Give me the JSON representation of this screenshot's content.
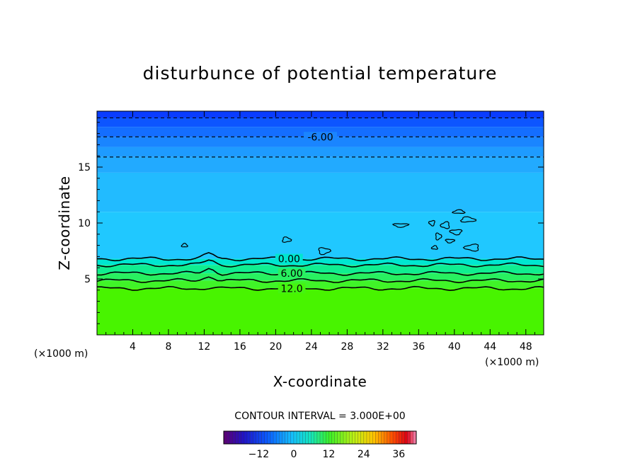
{
  "chart_data": {
    "type": "contour",
    "title": "disturbunce of potential temperature",
    "xlabel": "X-coordinate",
    "ylabel": "Z-coordinate",
    "x_unit_left": "(×1000 m)",
    "x_unit_right": "(×1000 m)",
    "xlim": [
      0,
      50
    ],
    "ylim": [
      0,
      20
    ],
    "x_ticks": [
      4,
      8,
      12,
      16,
      20,
      24,
      28,
      32,
      36,
      40,
      44,
      48
    ],
    "y_ticks": [
      5,
      10,
      15
    ],
    "x_tick_labels": [
      "4",
      "8",
      "12",
      "16",
      "20",
      "24",
      "28",
      "32",
      "36",
      "40",
      "44",
      "48"
    ],
    "y_tick_labels": [
      "5",
      "10",
      "15"
    ],
    "contour_interval_text": "CONTOUR INTERVAL = 3.000E+00",
    "contour_levels": [
      {
        "level": -9,
        "z": 19.4,
        "style": "dashed",
        "label": ""
      },
      {
        "level": -6,
        "z": 17.7,
        "style": "dashed",
        "label": "-6.00"
      },
      {
        "level": -3,
        "z": 15.9,
        "style": "dashed",
        "label": ""
      },
      {
        "level": 0,
        "z": 6.8,
        "style": "solid",
        "label": "0.00"
      },
      {
        "level": 3,
        "z": 6.25,
        "style": "solid",
        "label": ""
      },
      {
        "level": 6,
        "z": 5.5,
        "style": "solid",
        "label": "6.00"
      },
      {
        "level": 9,
        "z": 4.85,
        "style": "solid",
        "label": ""
      },
      {
        "level": 12,
        "z": 4.15,
        "style": "solid",
        "label": "12.0"
      }
    ],
    "field_bands": [
      {
        "z_from": 19.4,
        "z_to": 20.0,
        "color": "#0a3cff"
      },
      {
        "z_from": 18.6,
        "z_to": 19.4,
        "color": "#0d55ff"
      },
      {
        "z_from": 17.7,
        "z_to": 18.6,
        "color": "#146eff"
      },
      {
        "z_from": 16.8,
        "z_to": 17.7,
        "color": "#1a85ff"
      },
      {
        "z_from": 15.9,
        "z_to": 16.8,
        "color": "#1e9bff"
      },
      {
        "z_from": 14.5,
        "z_to": 15.9,
        "color": "#22aaff"
      },
      {
        "z_from": 11.0,
        "z_to": 14.5,
        "color": "#22bbff"
      },
      {
        "z_from": 6.8,
        "z_to": 11.0,
        "color": "#20c8ff"
      },
      {
        "z_from": 6.25,
        "z_to": 6.8,
        "color": "#00e6d0"
      },
      {
        "z_from": 5.5,
        "z_to": 6.25,
        "color": "#10ee90"
      },
      {
        "z_from": 4.85,
        "z_to": 5.5,
        "color": "#28f060"
      },
      {
        "z_from": 4.15,
        "z_to": 4.85,
        "color": "#40f428"
      },
      {
        "z_from": 0.0,
        "z_to": 4.15,
        "color": "#48f400"
      }
    ],
    "zero_contour_islands": [
      {
        "x": 9.8,
        "z": 8.0
      },
      {
        "x": 21.2,
        "z": 8.5
      },
      {
        "x": 25.4,
        "z": 7.5
      },
      {
        "x": 34.0,
        "z": 9.8
      },
      {
        "x": 37.5,
        "z": 10.0
      },
      {
        "x": 39.0,
        "z": 9.8
      },
      {
        "x": 40.5,
        "z": 11.0
      },
      {
        "x": 41.5,
        "z": 10.3
      },
      {
        "x": 38.2,
        "z": 8.8
      },
      {
        "x": 39.5,
        "z": 8.4
      },
      {
        "x": 40.2,
        "z": 9.2
      },
      {
        "x": 42.0,
        "z": 7.8
      },
      {
        "x": 37.8,
        "z": 7.8
      }
    ],
    "colorbar": {
      "min": -24,
      "max": 42,
      "tick_values": [
        -12,
        0,
        12,
        24,
        36
      ],
      "tick_labels": [
        "−12",
        "0",
        "12",
        "24",
        "36"
      ]
    },
    "grid": false
  },
  "colors": {
    "background": "#ffffff",
    "contour_line": "#000000"
  }
}
